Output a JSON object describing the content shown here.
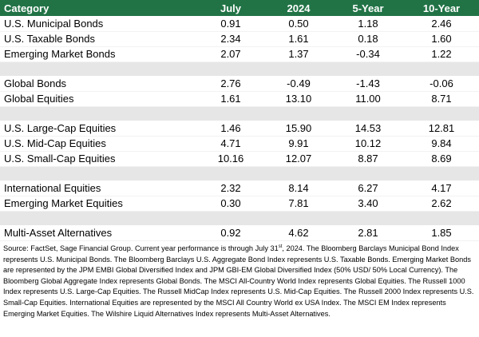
{
  "table": {
    "headers": [
      "Category",
      "July",
      "2024",
      "5-Year",
      "10-Year"
    ],
    "rows": [
      {
        "type": "data",
        "cells": [
          "U.S. Municipal Bonds",
          "0.91",
          "0.50",
          "1.18",
          "2.46"
        ]
      },
      {
        "type": "data",
        "cells": [
          "U.S. Taxable Bonds",
          "2.34",
          "1.61",
          "0.18",
          "1.60"
        ]
      },
      {
        "type": "data",
        "cells": [
          "Emerging Market Bonds",
          "2.07",
          "1.37",
          "-0.34",
          "1.22"
        ]
      },
      {
        "type": "spacer"
      },
      {
        "type": "data",
        "cells": [
          "Global Bonds",
          "2.76",
          "-0.49",
          "-1.43",
          "-0.06"
        ]
      },
      {
        "type": "data",
        "cells": [
          "Global Equities",
          "1.61",
          "13.10",
          "11.00",
          "8.71"
        ]
      },
      {
        "type": "spacer"
      },
      {
        "type": "data",
        "cells": [
          "U.S. Large-Cap Equities",
          "1.46",
          "15.90",
          "14.53",
          "12.81"
        ]
      },
      {
        "type": "data",
        "cells": [
          "U.S. Mid-Cap Equities",
          "4.71",
          "9.91",
          "10.12",
          "9.84"
        ]
      },
      {
        "type": "data",
        "cells": [
          "U.S. Small-Cap Equities",
          "10.16",
          "12.07",
          "8.87",
          "8.69"
        ]
      },
      {
        "type": "spacer"
      },
      {
        "type": "data",
        "cells": [
          "International Equities",
          "2.32",
          "8.14",
          "6.27",
          "4.17"
        ]
      },
      {
        "type": "data",
        "cells": [
          "Emerging Market Equities",
          "0.30",
          "7.81",
          "3.40",
          "2.62"
        ]
      },
      {
        "type": "spacer"
      },
      {
        "type": "data",
        "cells": [
          "Multi-Asset Alternatives",
          "0.92",
          "4.62",
          "2.81",
          "1.85"
        ]
      }
    ]
  },
  "source": {
    "before_sup": "Source: FactSet, Sage Financial Group. Current year performance is through July 31",
    "sup": "st",
    "after_sup": ", 2024. The Bloomberg Barclays Municipal Bond Index represents U.S. Municipal Bonds. The Bloomberg Barclays U.S. Aggregate Bond Index represents U.S. Taxable Bonds. Emerging Market Bonds are represented by the JPM EMBI Global Diversified Index and JPM GBI-EM Global Diversified Index (50% USD/ 50% Local Currency). The Bloomberg Global Aggregate Index represents Global Bonds. The MSCI All-Country World Index represents Global Equities. The Russell 1000 Index represents U.S. Large-Cap Equities. The Russell MidCap Index represents U.S. Mid-Cap Equities. The Russell 2000 Index represents U.S. Small-Cap Equities. International Equities are represented by the MSCI All Country World ex USA Index. The MSCI EM Index represents Emerging Market Equities. The Wilshire Liquid Alternatives Index represents Multi-Asset Alternatives."
  },
  "colors": {
    "header_bg": "#217346",
    "header_text": "#ffffff",
    "spacer_bg": "#e6e6e6"
  }
}
